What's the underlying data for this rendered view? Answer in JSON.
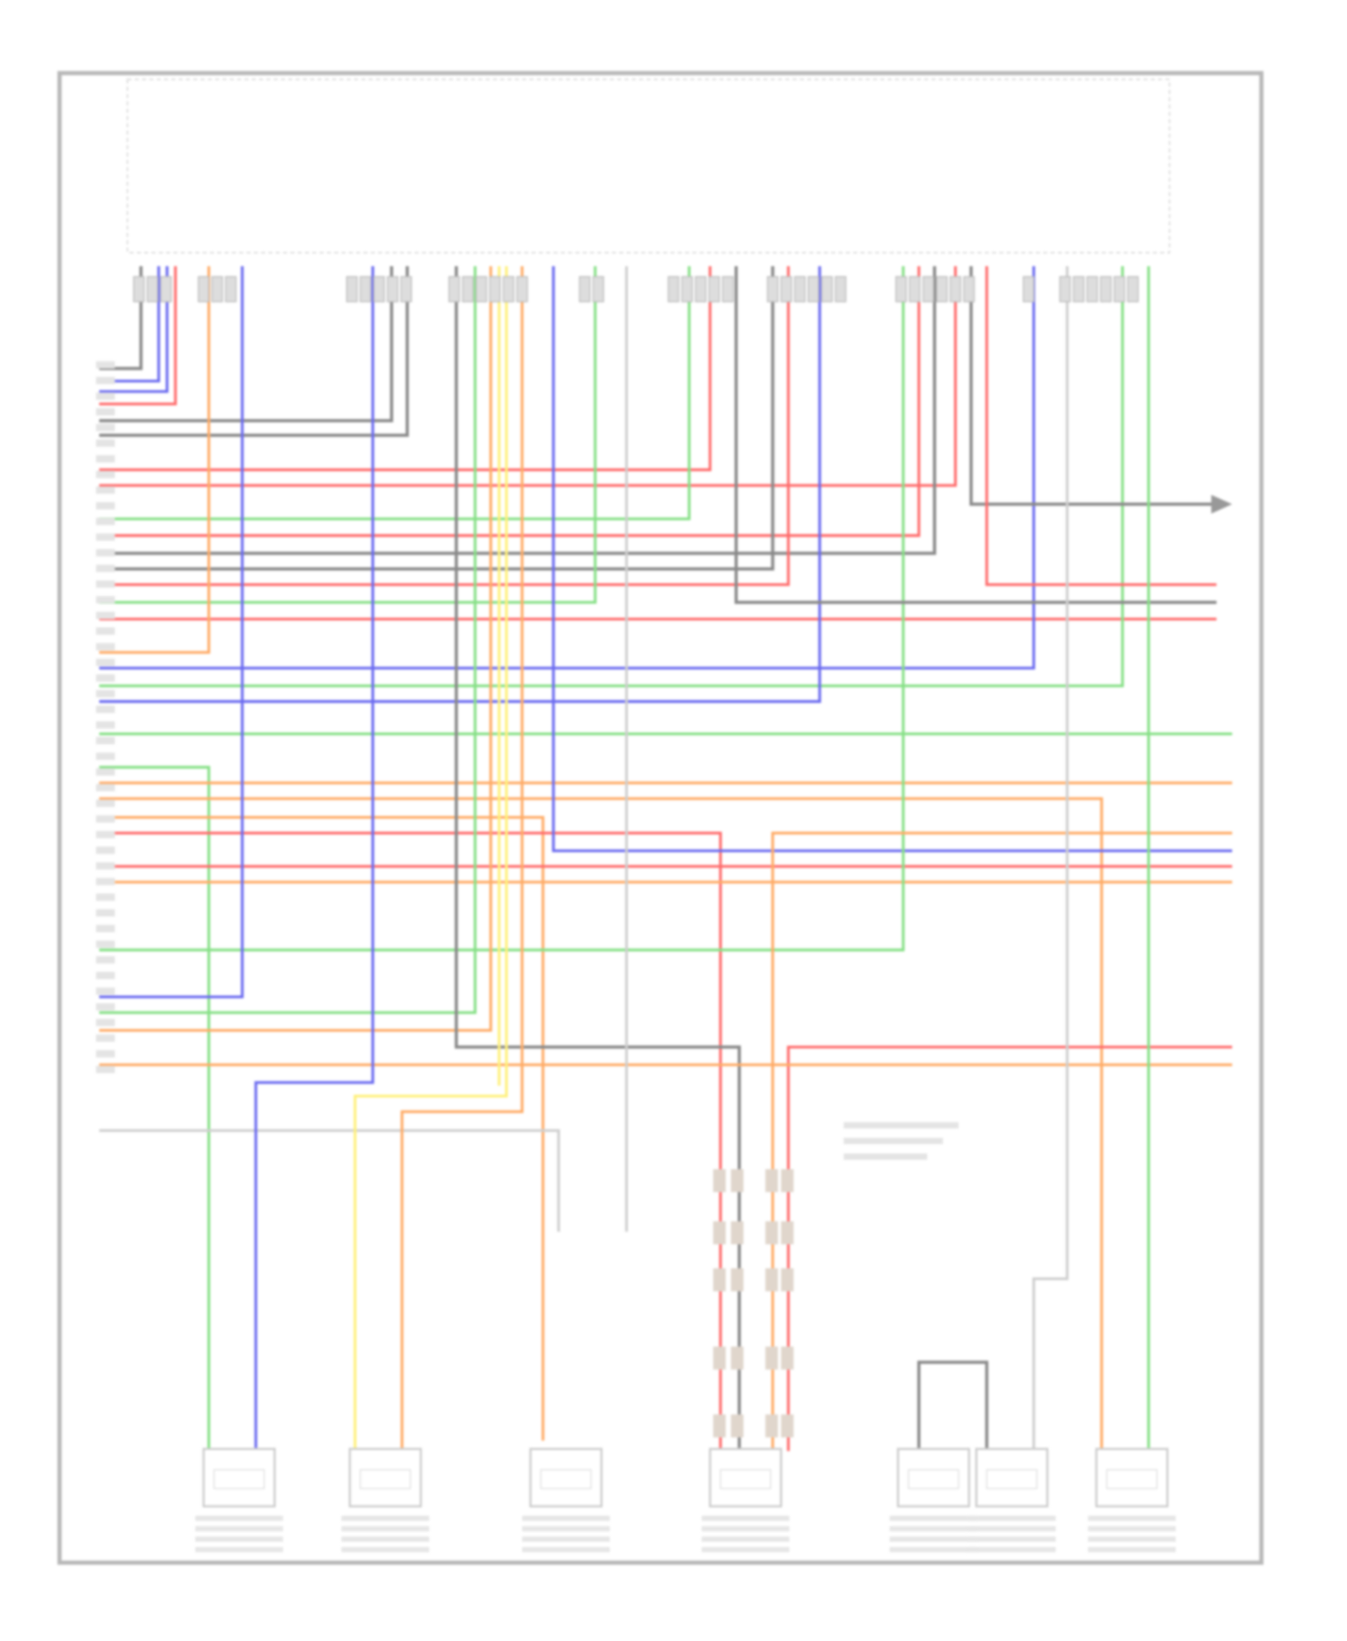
{
  "diagram": {
    "type": "wiring-schematic",
    "legible_text": false,
    "wire_colors": {
      "red": "#ff6b6b",
      "blue": "#6a6af0",
      "green": "#86e086",
      "gray": "#8a8a8a",
      "orange": "#ffab66",
      "yellow": "#fff07a",
      "light": "#cfcfcf"
    },
    "frame_color": "#b8b8b8",
    "bottom_components": 7
  }
}
